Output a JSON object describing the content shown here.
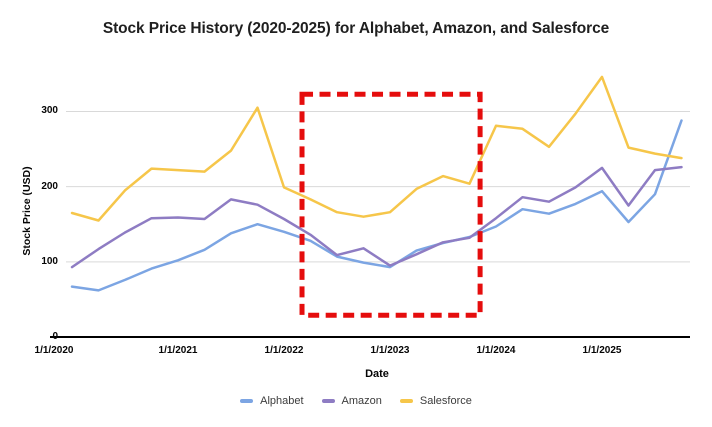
{
  "chart_data": {
    "type": "line",
    "title": "Stock Price History (2020-2025) for Alphabet, Amazon, and Salesforce",
    "xlabel": "Date",
    "ylabel": "Stock Price (USD)",
    "legend_position": "bottom",
    "grid": "horizontal",
    "ylim": [
      0,
      362
    ],
    "x": [
      "1/1/2020",
      "4/1/2020",
      "7/1/2020",
      "10/1/2020",
      "1/1/2021",
      "4/1/2021",
      "7/1/2021",
      "10/1/2021",
      "1/1/2022",
      "4/1/2022",
      "7/1/2022",
      "10/1/2022",
      "1/1/2023",
      "4/1/2023",
      "7/1/2023",
      "10/1/2023",
      "1/1/2024",
      "4/1/2024",
      "7/1/2024",
      "10/1/2024",
      "1/1/2025",
      "4/1/2025",
      "7/1/2025",
      "10/1/2025"
    ],
    "x_ticks": [
      {
        "label": "1/1/2020",
        "index": 0
      },
      {
        "label": "1/1/2021",
        "index": 4
      },
      {
        "label": "1/1/2022",
        "index": 8
      },
      {
        "label": "1/1/2023",
        "index": 12
      },
      {
        "label": "1/1/2024",
        "index": 16
      },
      {
        "label": "1/1/2025",
        "index": 20
      }
    ],
    "y_ticks": [
      {
        "label": "0",
        "value": 0
      },
      {
        "label": "100",
        "value": 100
      },
      {
        "label": "200",
        "value": 200
      },
      {
        "label": "300",
        "value": 300
      }
    ],
    "series": [
      {
        "name": "Alphabet",
        "color": "#7CA5E3",
        "values": [
          67,
          62,
          76,
          91,
          102,
          116,
          138,
          150,
          140,
          128,
          107,
          99,
          93,
          115,
          125,
          133,
          147,
          170,
          164,
          177,
          194,
          153,
          190,
          288
        ]
      },
      {
        "name": "Amazon",
        "color": "#8E7CC3",
        "values": [
          93,
          117,
          139,
          158,
          159,
          157,
          183,
          176,
          157,
          136,
          109,
          118,
          95,
          110,
          126,
          132,
          158,
          186,
          180,
          199,
          225,
          175,
          222,
          226
        ]
      },
      {
        "name": "Salesforce",
        "color": "#F6C64A",
        "values": [
          165,
          155,
          195,
          224,
          222,
          220,
          248,
          305,
          199,
          183,
          166,
          160,
          166,
          197,
          214,
          204,
          281,
          277,
          253,
          297,
          346,
          252,
          244,
          238
        ]
      }
    ],
    "annotation": {
      "type": "dashed-rectangle",
      "color": "#E50D0D",
      "x_start_index": 8.68,
      "x_end_index": 15.4,
      "y_min": 29,
      "y_max": 323
    }
  }
}
